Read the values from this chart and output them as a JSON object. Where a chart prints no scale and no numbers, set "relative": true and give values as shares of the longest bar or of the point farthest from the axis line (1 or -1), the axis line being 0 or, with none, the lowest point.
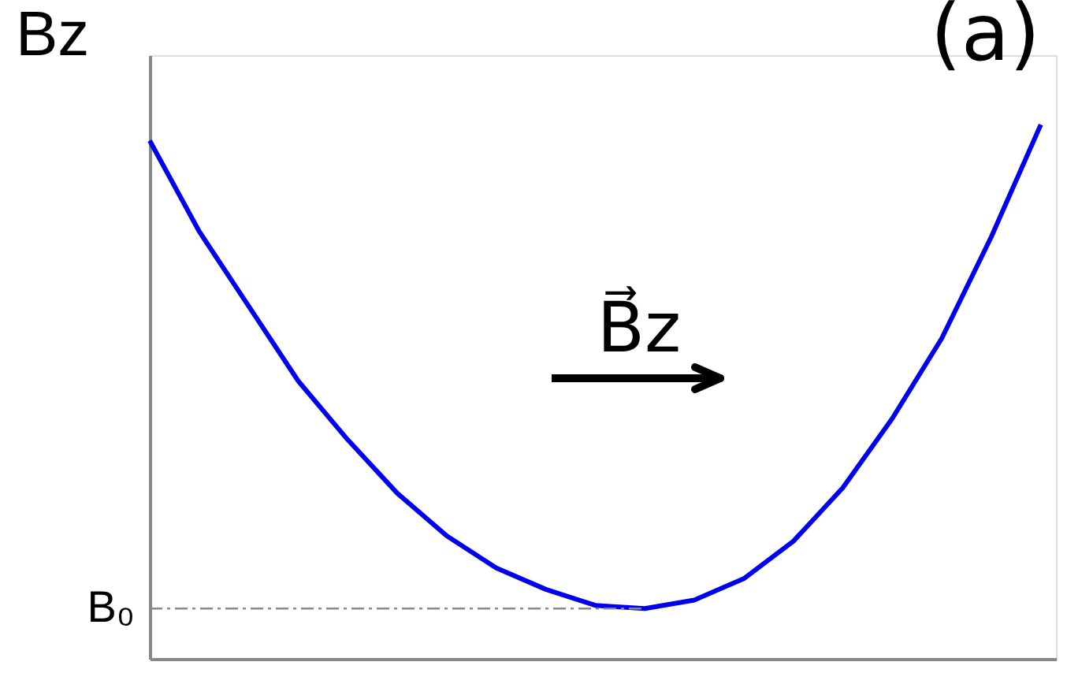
{
  "chart_data": {
    "type": "line",
    "relative": true,
    "ylabel": "Bz",
    "categories": [
      null,
      null,
      null,
      null,
      null,
      null,
      null,
      null,
      null,
      null,
      null,
      null,
      null,
      null,
      null,
      null,
      null,
      null,
      null
    ],
    "series": [
      {
        "color": "#0000ee",
        "values": [
          0.97,
          0.8,
          0.66,
          0.52,
          0.41,
          0.31,
          0.23,
          0.17,
          0.13,
          0.1,
          0.094,
          0.11,
          0.15,
          0.22,
          0.32,
          0.45,
          0.6,
          0.79,
          1.0
        ]
      }
    ],
    "ref_lines": [
      {
        "axis": "y",
        "value": 0.094,
        "label": "B₀",
        "color": "#888888",
        "line_style": "dashdot"
      }
    ],
    "annotations": [
      "(a)",
      "B⃗z"
    ],
    "grid": false,
    "tick_labels": "y"
  }
}
